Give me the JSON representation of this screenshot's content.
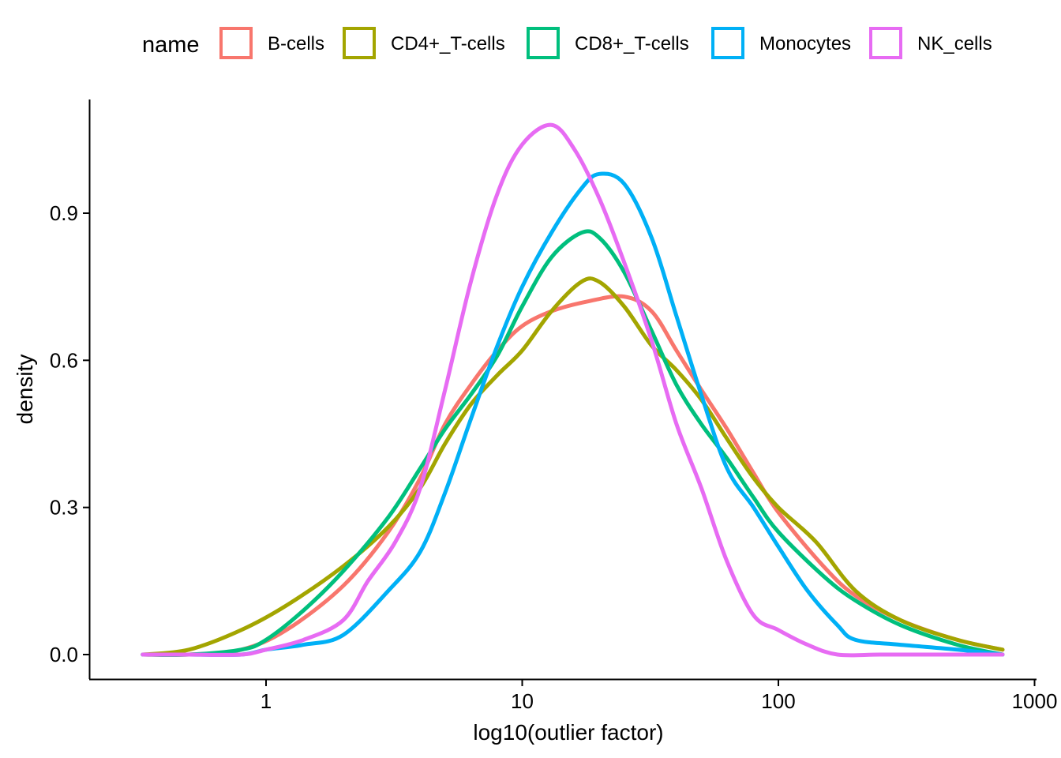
{
  "chart_data": {
    "type": "line",
    "title": "",
    "xlabel": "log10(outlier factor)",
    "ylabel": "density",
    "x_scale": "log10",
    "xlim": [
      0.3,
      850
    ],
    "ylim": [
      -0.05,
      1.13
    ],
    "x_ticks": [
      {
        "value": 1,
        "label": "1"
      },
      {
        "value": 10,
        "label": "10"
      },
      {
        "value": 100,
        "label": "100"
      },
      {
        "value": 1000,
        "label": "1000"
      }
    ],
    "y_ticks": [
      {
        "value": 0.0,
        "label": "0.0"
      },
      {
        "value": 0.3,
        "label": "0.3"
      },
      {
        "value": 0.6,
        "label": "0.6"
      },
      {
        "value": 0.9,
        "label": "0.9"
      }
    ],
    "grid": false,
    "legend": {
      "title": "name",
      "position": "top"
    },
    "series": [
      {
        "name": "B-cells",
        "color": "#F8766D",
        "x": [
          0.33,
          0.5,
          0.8,
          1.2,
          2.0,
          3.0,
          4.0,
          5.0,
          6.3,
          8.0,
          10.0,
          13.0,
          18.0,
          25.0,
          32.0,
          40.0,
          50.0,
          63.0,
          80.0,
          100.0,
          150.0,
          200.0,
          300.0,
          500.0,
          750.0
        ],
        "y": [
          0.0,
          0.0,
          0.01,
          0.05,
          0.14,
          0.25,
          0.36,
          0.47,
          0.55,
          0.62,
          0.67,
          0.7,
          0.72,
          0.73,
          0.7,
          0.62,
          0.54,
          0.46,
          0.37,
          0.29,
          0.18,
          0.12,
          0.07,
          0.03,
          0.01
        ]
      },
      {
        "name": "CD4+_T-cells",
        "color": "#A3A500",
        "x": [
          0.33,
          0.5,
          0.8,
          1.2,
          2.0,
          3.0,
          4.0,
          5.0,
          6.3,
          8.0,
          10.0,
          13.0,
          17.0,
          20.0,
          25.0,
          32.0,
          40.0,
          50.0,
          63.0,
          80.0,
          100.0,
          140.0,
          200.0,
          300.0,
          500.0,
          750.0
        ],
        "y": [
          0.0,
          0.01,
          0.05,
          0.1,
          0.18,
          0.26,
          0.34,
          0.43,
          0.51,
          0.57,
          0.62,
          0.7,
          0.76,
          0.76,
          0.71,
          0.63,
          0.58,
          0.52,
          0.44,
          0.36,
          0.3,
          0.23,
          0.13,
          0.07,
          0.03,
          0.01
        ]
      },
      {
        "name": "CD8+_T-cells",
        "color": "#00BF7D",
        "x": [
          0.33,
          0.5,
          0.8,
          1.0,
          1.4,
          2.0,
          3.0,
          4.0,
          5.0,
          6.3,
          8.0,
          10.0,
          13.0,
          17.0,
          20.0,
          25.0,
          32.0,
          40.0,
          50.0,
          63.0,
          80.0,
          100.0,
          150.0,
          200.0,
          300.0,
          500.0,
          750.0
        ],
        "y": [
          0.0,
          0.0,
          0.01,
          0.03,
          0.09,
          0.17,
          0.28,
          0.38,
          0.46,
          0.53,
          0.61,
          0.71,
          0.81,
          0.86,
          0.85,
          0.78,
          0.66,
          0.55,
          0.47,
          0.4,
          0.32,
          0.25,
          0.16,
          0.11,
          0.06,
          0.02,
          0.0
        ]
      },
      {
        "name": "Monocytes",
        "color": "#00B0F6",
        "x": [
          0.33,
          0.5,
          0.8,
          1.0,
          1.4,
          2.0,
          3.0,
          4.0,
          5.0,
          6.3,
          8.0,
          10.0,
          13.0,
          17.0,
          20.0,
          25.0,
          32.0,
          40.0,
          50.0,
          63.0,
          80.0,
          100.0,
          130.0,
          170.0,
          200.0,
          300.0,
          500.0,
          750.0
        ],
        "y": [
          0.0,
          0.0,
          0.0,
          0.01,
          0.02,
          0.04,
          0.13,
          0.21,
          0.33,
          0.48,
          0.63,
          0.75,
          0.86,
          0.95,
          0.98,
          0.96,
          0.85,
          0.69,
          0.53,
          0.38,
          0.3,
          0.22,
          0.13,
          0.06,
          0.03,
          0.02,
          0.01,
          0.0
        ]
      },
      {
        "name": "NK_cells",
        "color": "#E76BF3",
        "x": [
          0.33,
          0.5,
          0.8,
          1.0,
          1.4,
          2.0,
          2.5,
          3.2,
          4.0,
          5.0,
          6.3,
          8.0,
          10.0,
          13.0,
          16.0,
          20.0,
          25.0,
          32.0,
          40.0,
          50.0,
          63.0,
          80.0,
          100.0,
          130.0,
          170.0,
          250.0,
          400.0,
          750.0
        ],
        "y": [
          0.0,
          0.0,
          0.0,
          0.01,
          0.03,
          0.07,
          0.15,
          0.23,
          0.34,
          0.54,
          0.76,
          0.94,
          1.04,
          1.08,
          1.03,
          0.93,
          0.8,
          0.64,
          0.47,
          0.34,
          0.19,
          0.08,
          0.05,
          0.02,
          0.0,
          0.0,
          0.0,
          0.0
        ]
      }
    ]
  }
}
